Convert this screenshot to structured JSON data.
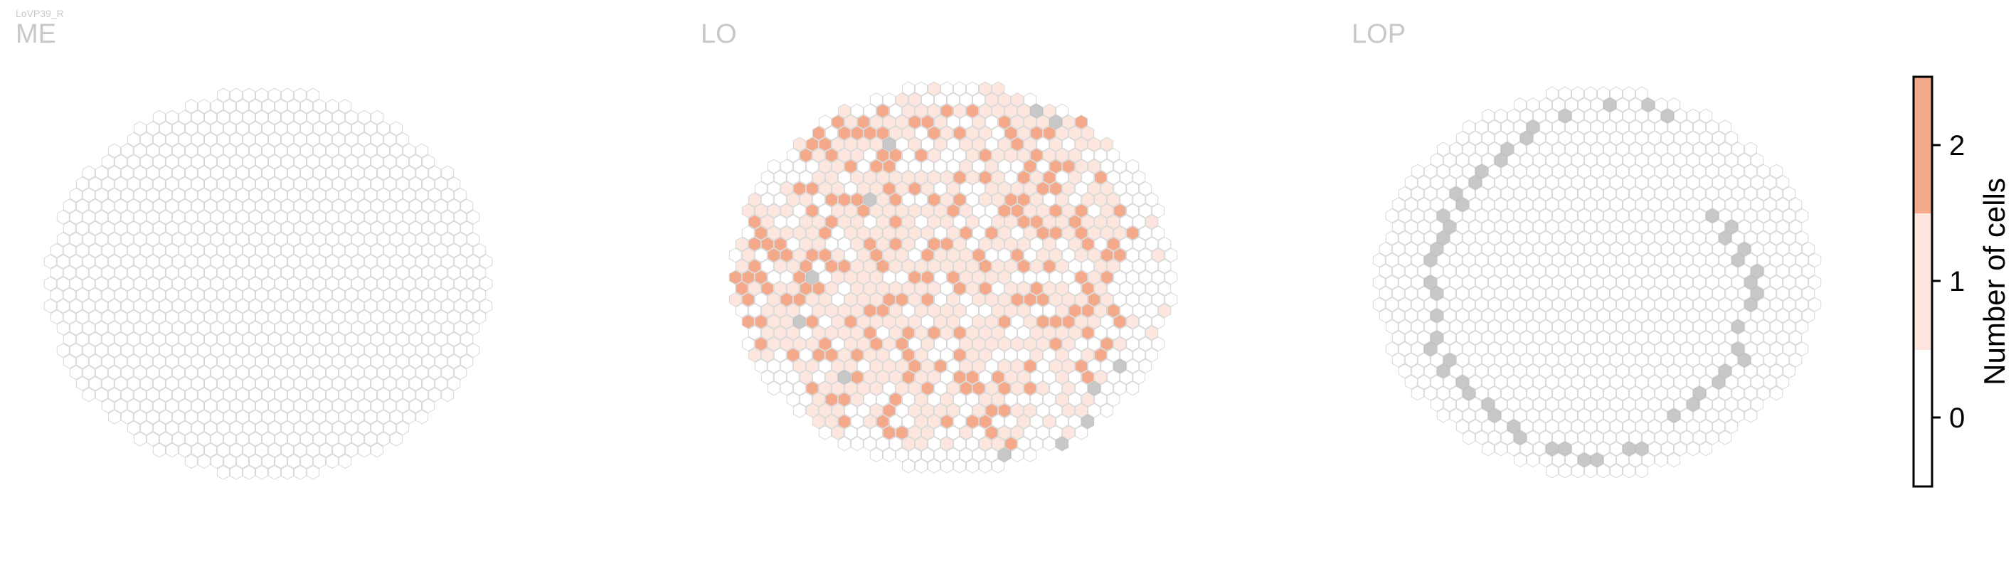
{
  "figure": {
    "neuron_type": "LoVP39_R",
    "colors": {
      "empty": "#ffffff",
      "one": "#fce6dd",
      "two": "#f4a98a",
      "hex_stroke": "#d8d8d8",
      "boundary": "#c8c8c8",
      "title": "#c8c8c8",
      "axis": "#000000"
    }
  },
  "chart_data": {
    "type": "heatmap",
    "panels": [
      {
        "title": "ME",
        "seed": 11,
        "fill_model": "none",
        "boundary": {
          "left": [],
          "right": []
        },
        "counts_summary": "all 0"
      },
      {
        "title": "LO",
        "seed": 7,
        "fill_model": "blob",
        "boundary": {
          "left": [
            [
              -5,
              12
            ],
            [
              -7,
              7
            ],
            [
              -11,
              0
            ],
            [
              -12,
              -4
            ],
            [
              -9,
              -9
            ]
          ],
          "right": [
            [
              6,
              15
            ],
            [
              8,
              14
            ],
            [
              13,
              -8
            ],
            [
              11,
              -10
            ],
            [
              10,
              -13
            ],
            [
              8,
              -15
            ],
            [
              4,
              -16
            ]
          ]
        },
        "counts_summary": "0-2 cells per column, concentrated in center-left"
      },
      {
        "title": "LOP",
        "seed": 3,
        "fill_model": "none",
        "boundary": {
          "left": [
            [
              -3,
              15
            ],
            [
              -5,
              14
            ],
            [
              -6,
              13
            ],
            [
              -7,
              12
            ],
            [
              -8,
              11
            ],
            [
              -9,
              10
            ],
            [
              -10,
              9
            ],
            [
              -11,
              8
            ],
            [
              -11,
              7
            ],
            [
              -12,
              6
            ],
            [
              -12,
              5
            ],
            [
              -12,
              4
            ],
            [
              -13,
              3
            ],
            [
              -13,
              2
            ],
            [
              -13,
              0
            ],
            [
              -13,
              -1
            ],
            [
              -13,
              -3
            ],
            [
              -13,
              -5
            ],
            [
              -13,
              -6
            ],
            [
              -12,
              -7
            ],
            [
              -12,
              -8
            ],
            [
              -11,
              -9
            ],
            [
              -10,
              -10
            ],
            [
              -9,
              -11
            ],
            [
              -8,
              -12
            ],
            [
              -7,
              -13
            ],
            [
              -6,
              -14
            ],
            [
              -4,
              -15
            ],
            [
              -3,
              -15
            ],
            [
              -1,
              -16
            ],
            [
              0,
              -16
            ],
            [
              2,
              -15
            ],
            [
              3,
              -15
            ]
          ],
          "right": [
            [
              1,
              16
            ],
            [
              4,
              16
            ],
            [
              5,
              15
            ],
            [
              9,
              6
            ],
            [
              10,
              5
            ],
            [
              10,
              4
            ],
            [
              11,
              3
            ],
            [
              11,
              2
            ],
            [
              12,
              1
            ],
            [
              12,
              0
            ],
            [
              12,
              -1
            ],
            [
              12,
              -2
            ],
            [
              11,
              -4
            ],
            [
              11,
              -6
            ],
            [
              11,
              -7
            ],
            [
              10,
              -8
            ],
            [
              9,
              -9
            ],
            [
              8,
              -10
            ],
            [
              7,
              -11
            ],
            [
              6,
              -12
            ]
          ]
        },
        "counts_summary": "all 0"
      }
    ],
    "colorbar": {
      "label": "Number of cells",
      "ticks": [
        "0",
        "1",
        "2"
      ],
      "levels": [
        0,
        1,
        2
      ],
      "colors": [
        "#ffffff",
        "#fce6dd",
        "#f4a98a"
      ]
    }
  }
}
